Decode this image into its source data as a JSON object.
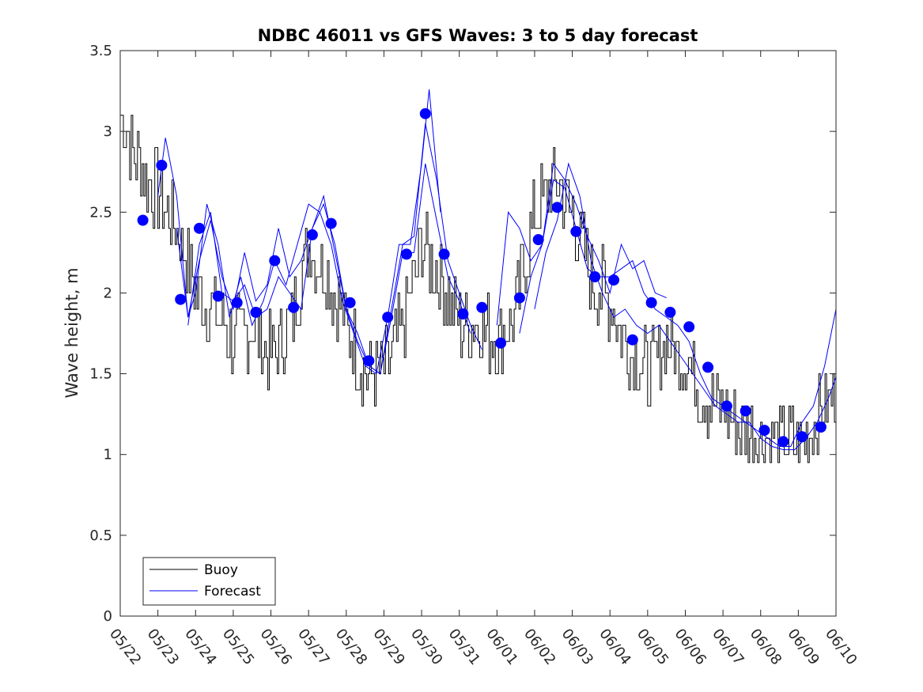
{
  "chart_data": {
    "type": "line",
    "title": "NDBC 46011 vs GFS Waves: 3 to 5 day forecast",
    "xlabel": "",
    "ylabel": "Wave height, m",
    "ylim": [
      0,
      3.5
    ],
    "yticks": [
      "0",
      "0.5",
      "1",
      "1.5",
      "2",
      "2.5",
      "3",
      "3.5"
    ],
    "xlim_days": [
      0,
      19
    ],
    "xticks": [
      "05/22",
      "05/23",
      "05/24",
      "05/25",
      "05/26",
      "05/27",
      "05/28",
      "05/29",
      "05/30",
      "05/31",
      "06/01",
      "06/02",
      "06/03",
      "06/04",
      "06/05",
      "06/06",
      "06/07",
      "06/08",
      "06/09",
      "06/10"
    ],
    "grid": false,
    "legend": {
      "placement": "bottom-left",
      "entries": [
        "Buoy",
        "Forecast"
      ]
    },
    "colors": {
      "buoy": "#000000",
      "forecast": "#0000ff"
    },
    "buoy_series": {
      "name": "Buoy",
      "x_days": [
        0,
        0.5,
        1,
        1.5,
        2,
        2.5,
        3,
        3.5,
        4,
        4.5,
        5,
        5.5,
        6,
        6.5,
        7,
        7.5,
        8,
        8.5,
        9,
        9.5,
        10,
        10.5,
        11,
        11.5,
        12,
        12.5,
        13,
        13.5,
        14,
        14.5,
        15,
        15.5,
        16,
        16.5,
        17,
        17.5,
        18,
        18.5,
        19
      ],
      "values": [
        3.1,
        2.8,
        2.6,
        2.4,
        2.0,
        1.9,
        1.7,
        1.8,
        1.6,
        1.8,
        2.3,
        2.1,
        1.8,
        1.5,
        1.5,
        1.8,
        2.3,
        2.1,
        1.8,
        1.8,
        1.7,
        1.9,
        2.5,
        2.7,
        2.5,
        2.1,
        1.95,
        1.65,
        1.5,
        1.7,
        1.6,
        1.35,
        1.3,
        1.15,
        1.1,
        1.1,
        1.05,
        1.25,
        1.4
      ]
    },
    "forecast_points": {
      "name": "Forecast",
      "x_days": [
        0.6,
        1.1,
        1.6,
        2.1,
        2.6,
        3.1,
        3.6,
        4.1,
        4.6,
        5.1,
        5.6,
        6.1,
        6.6,
        7.1,
        7.6,
        8.1,
        8.6,
        9.1,
        9.6,
        10.1,
        10.6,
        11.1,
        11.6,
        12.1,
        12.6,
        13.1,
        13.6,
        14.1,
        14.6,
        15.1,
        15.6,
        16.1,
        16.6,
        17.1,
        17.6,
        18.1,
        18.6
      ],
      "values": [
        2.45,
        2.79,
        1.96,
        2.4,
        1.98,
        1.94,
        1.88,
        2.2,
        1.91,
        2.36,
        2.43,
        1.94,
        1.58,
        1.85,
        2.24,
        3.11,
        2.24,
        1.87,
        1.91,
        1.69,
        1.97,
        2.33,
        2.53,
        2.38,
        2.1,
        2.08,
        1.71,
        1.94,
        1.88,
        1.79,
        1.54,
        1.3,
        1.27,
        1.15,
        1.08,
        1.11,
        1.17
      ]
    },
    "forecast_runs": [
      {
        "x_days": [
          1.0,
          1.2,
          1.5,
          1.8,
          2.0,
          2.3,
          2.6,
          2.9,
          3.2,
          3.5,
          3.8,
          4.1,
          4.4,
          4.7,
          5.0,
          5.3,
          5.6,
          5.9,
          6.2,
          6.5,
          6.8,
          7.1,
          7.4,
          7.7,
          8.0,
          8.2,
          8.5
        ],
        "values": [
          2.6,
          2.96,
          2.6,
          1.85,
          2.0,
          2.55,
          2.3,
          1.85,
          2.1,
          1.8,
          1.95,
          2.2,
          2.05,
          2.3,
          2.55,
          2.5,
          2.3,
          1.95,
          1.75,
          1.55,
          1.5,
          1.85,
          2.3,
          2.3,
          2.8,
          3.26,
          2.5
        ]
      },
      {
        "x_days": [
          1.5,
          1.8,
          2.1,
          2.4,
          2.7,
          3.0,
          3.3,
          3.6,
          3.9,
          4.2,
          4.5,
          4.8,
          5.1,
          5.4,
          5.7,
          6.0,
          6.3,
          6.6,
          6.9,
          7.2,
          7.5,
          7.8,
          8.1,
          8.4,
          8.7,
          9.0,
          9.3,
          9.6
        ],
        "values": [
          2.4,
          1.85,
          2.2,
          2.45,
          2.1,
          1.9,
          2.25,
          1.95,
          2.05,
          2.4,
          2.1,
          2.2,
          2.4,
          2.55,
          2.3,
          1.9,
          1.7,
          1.55,
          1.5,
          1.9,
          2.3,
          2.35,
          3.05,
          2.7,
          2.2,
          2.0,
          1.8,
          1.65
        ]
      },
      {
        "x_days": [
          1.8,
          2.1,
          2.4,
          2.7,
          3.0,
          3.3,
          3.6,
          3.9,
          4.2,
          4.5,
          4.8,
          5.1,
          5.4,
          5.7,
          6.0,
          6.3,
          6.6,
          6.9,
          7.2,
          7.5,
          7.8,
          8.1,
          8.4,
          8.7,
          9.0,
          9.3
        ],
        "values": [
          1.8,
          2.3,
          2.5,
          2.0,
          1.95,
          2.05,
          1.85,
          1.9,
          2.1,
          2.0,
          1.9,
          2.4,
          2.6,
          2.25,
          1.9,
          1.75,
          1.55,
          1.5,
          1.85,
          2.25,
          2.25,
          2.8,
          2.45,
          2.1,
          1.95,
          1.75
        ]
      },
      {
        "x_days": [
          10.0,
          10.3,
          10.6,
          10.9,
          11.2,
          11.5,
          11.8,
          12.1,
          12.4,
          12.7,
          13.0,
          13.3,
          13.6,
          13.9,
          14.2,
          14.5
        ],
        "values": [
          1.8,
          2.5,
          2.4,
          2.2,
          2.3,
          2.8,
          2.7,
          2.55,
          2.35,
          2.2,
          2.0,
          2.3,
          2.15,
          2.2,
          2.0,
          1.97
        ]
      },
      {
        "x_days": [
          10.6,
          10.9,
          11.2,
          11.5,
          11.8,
          12.1,
          12.4,
          12.7,
          13.0,
          13.3,
          13.6,
          13.9,
          14.2,
          14.5,
          14.8,
          15.1,
          15.4,
          15.7,
          16.0,
          16.3,
          16.6,
          16.9,
          17.2,
          17.5,
          17.8,
          18.1,
          18.4,
          18.7,
          19.0
        ],
        "values": [
          1.75,
          2.1,
          2.3,
          2.7,
          2.65,
          2.4,
          2.15,
          2.1,
          2.1,
          2.15,
          2.2,
          2.0,
          1.9,
          1.85,
          1.8,
          1.7,
          1.5,
          1.35,
          1.3,
          1.25,
          1.2,
          1.15,
          1.1,
          1.05,
          1.05,
          1.2,
          1.3,
          1.55,
          1.9
        ]
      },
      {
        "x_days": [
          11.0,
          11.3,
          11.6,
          11.9,
          12.2,
          12.5,
          12.8,
          13.1,
          13.4,
          13.7,
          14.0,
          14.3,
          14.6,
          14.9,
          15.2,
          15.5,
          15.8,
          16.1,
          16.4,
          16.7,
          17.0,
          17.3,
          17.6,
          17.9,
          18.2,
          18.5,
          18.8,
          19.0
        ],
        "values": [
          1.9,
          2.25,
          2.45,
          2.8,
          2.6,
          2.2,
          2.0,
          1.85,
          1.9,
          1.8,
          1.75,
          1.8,
          1.7,
          1.6,
          1.5,
          1.4,
          1.3,
          1.25,
          1.2,
          1.2,
          1.1,
          1.05,
          1.03,
          1.03,
          1.1,
          1.2,
          1.35,
          1.48
        ]
      }
    ]
  }
}
